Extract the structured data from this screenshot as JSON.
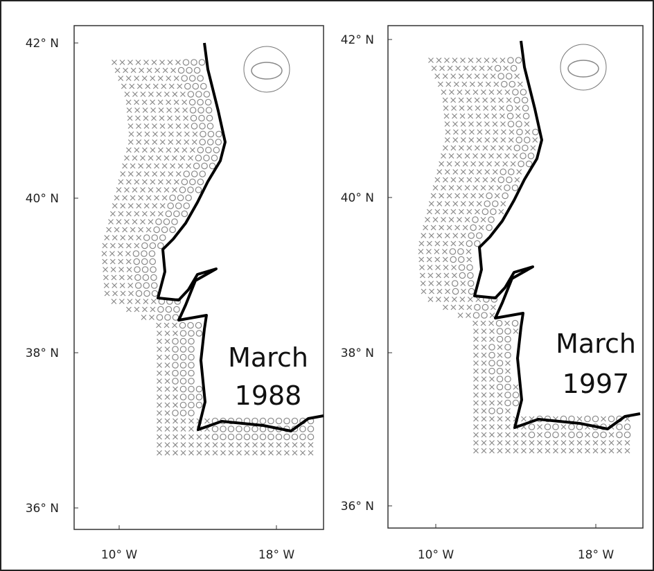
{
  "panels": [
    {
      "label_lines": [
        "March",
        "1988"
      ],
      "y_labels": [
        "42° N",
        "40° N",
        "38° N",
        "36° N"
      ],
      "x_labels": [
        "10° W",
        "18° W"
      ]
    },
    {
      "label_lines": [
        "March",
        "1997"
      ],
      "y_labels": [
        "42° N",
        "40° N",
        "38° N",
        "36° N"
      ],
      "x_labels": [
        "10° W",
        "18° W"
      ]
    }
  ]
}
